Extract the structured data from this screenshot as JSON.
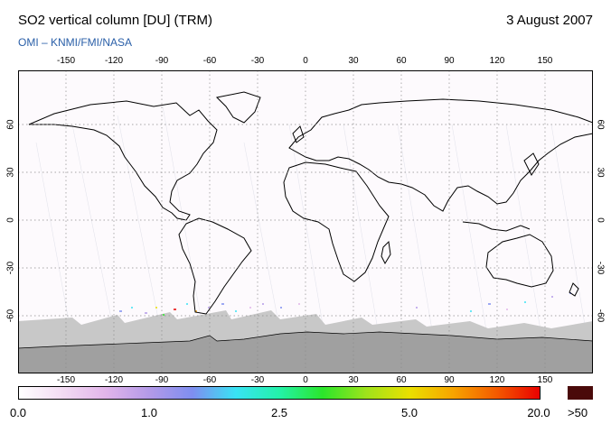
{
  "header": {
    "title": "SO2 vertical column [DU] (TRM)",
    "date": "3 August 2007",
    "credit": "OMI  –  KNMI/FMI/NASA"
  },
  "map": {
    "lon_ticks": [
      "-150",
      "-120",
      "-90",
      "-60",
      "-30",
      "0",
      "30",
      "60",
      "90",
      "120",
      "150"
    ],
    "lat_ticks": [
      "60",
      "30",
      "0",
      "-30",
      "-60"
    ],
    "colors": {
      "land_outline": "#000000",
      "no_data": "#c8c8c8",
      "antarctica": "#a0a0a0"
    }
  },
  "colorbar": {
    "labels": [
      "0.0",
      "1.0",
      "2.5",
      "5.0",
      "20.0"
    ],
    "over_label": ">50",
    "over_color": "#4a0a0a",
    "stops": [
      "#ffffff",
      "#f3dcf3",
      "#e2b5ea",
      "#b49ae8",
      "#7f8ef0",
      "#39e3f4",
      "#23f2a9",
      "#2be62b",
      "#9fe31b",
      "#eae000",
      "#f7a400",
      "#f45a00",
      "#e80000"
    ]
  }
}
